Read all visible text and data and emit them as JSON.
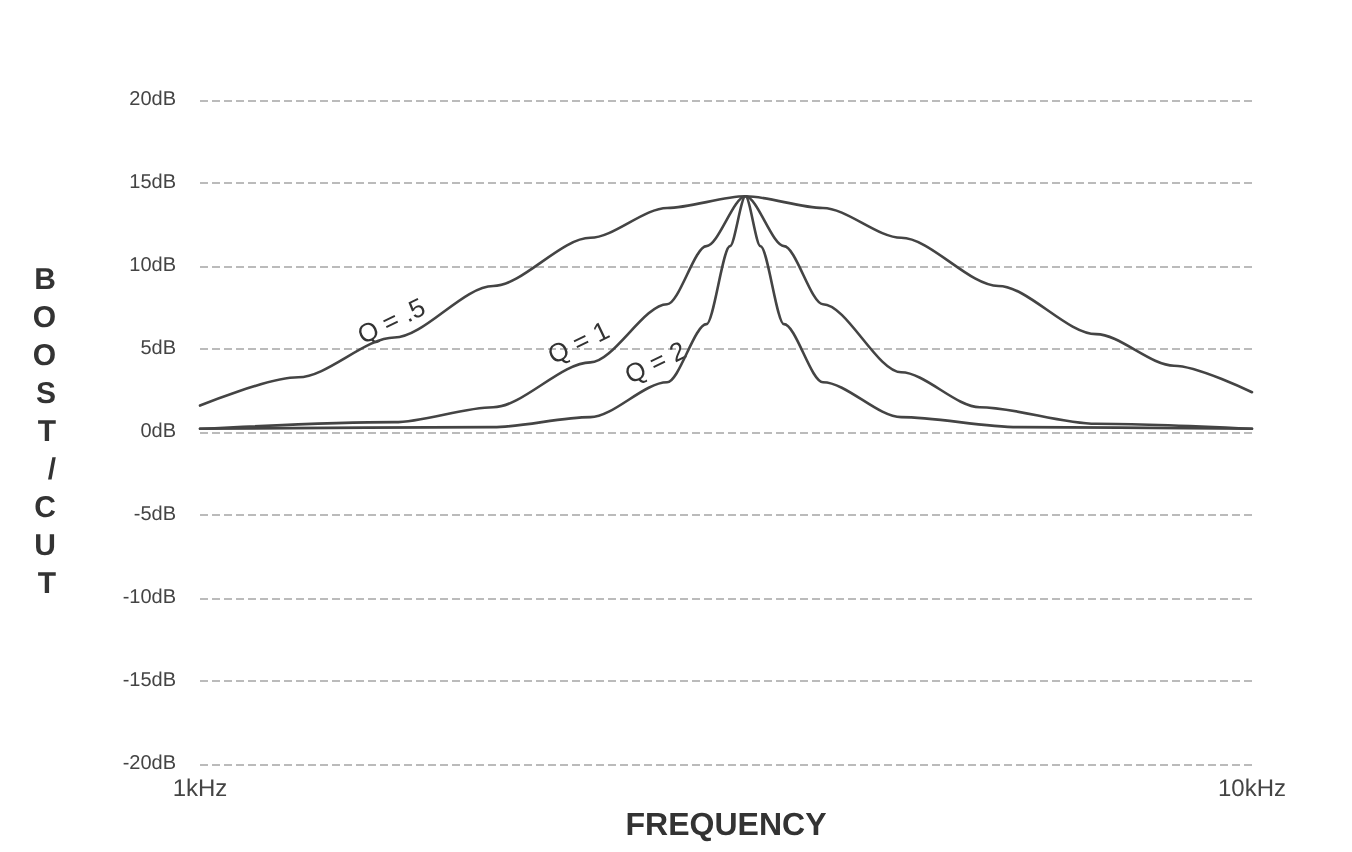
{
  "chart_data": {
    "type": "line",
    "xlabel": "FREQUENCY",
    "ylabel": "BOOST/CUT",
    "log": "x",
    "xlim": [
      1,
      10
    ],
    "xticks": [
      {
        "value": 1,
        "label": "1kHz"
      },
      {
        "value": 10,
        "label": "10kHz"
      }
    ],
    "ylim": [
      -20,
      20
    ],
    "yticks": [
      {
        "value": -20,
        "label": "-20dB"
      },
      {
        "value": -15,
        "label": "-15dB"
      },
      {
        "value": -10,
        "label": "-10dB"
      },
      {
        "value": -5,
        "label": "-5dB"
      },
      {
        "value": 0,
        "label": "0dB"
      },
      {
        "value": 5,
        "label": "5dB"
      },
      {
        "value": 10,
        "label": "10dB"
      },
      {
        "value": 15,
        "label": "15dB"
      },
      {
        "value": 20,
        "label": "20dB"
      }
    ],
    "grid": "y",
    "marker": "none",
    "line_style": "solid",
    "series": [
      {
        "color": "#444444",
        "x": [
          1,
          1.24,
          1.53,
          1.9,
          2.35,
          2.78,
          3.3,
          3.91,
          4.64,
          5.74,
          7.11,
          8.43,
          10
        ],
        "values": [
          1.6,
          3.3,
          5.7,
          8.8,
          11.7,
          13.5,
          14.2,
          13.5,
          11.7,
          8.8,
          5.9,
          4.0,
          2.4
        ]
      },
      {
        "color": "#444444",
        "x": [
          1,
          1.53,
          1.9,
          2.35,
          2.78,
          3.03,
          3.3,
          3.59,
          3.91,
          4.64,
          5.51,
          7.11,
          10
        ],
        "values": [
          0.2,
          0.6,
          1.5,
          4.2,
          7.7,
          11.2,
          14.2,
          11.2,
          7.7,
          3.6,
          1.5,
          0.5,
          0.2
        ]
      },
      {
        "color": "#444444",
        "x": [
          1,
          1.9,
          2.35,
          2.78,
          3.03,
          3.19,
          3.3,
          3.41,
          3.59,
          3.91,
          4.64,
          5.99,
          10
        ],
        "values": [
          0.2,
          0.3,
          0.9,
          3.0,
          6.5,
          11.2,
          14.2,
          11.2,
          6.5,
          3.0,
          0.9,
          0.3,
          0.2
        ]
      }
    ],
    "annotations": [
      {
        "text": "Q = .5",
        "x": 1.56,
        "y": 5.5
      },
      {
        "text": "Q = 1",
        "x": 2.35,
        "y": 4.2
      },
      {
        "text": "Q = 2",
        "x": 2.78,
        "y": 3.0
      }
    ]
  }
}
